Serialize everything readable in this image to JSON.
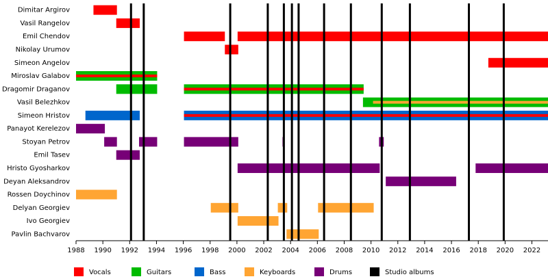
{
  "chart_data": {
    "type": "timeline",
    "categories": [
      "Dimitar Argirov",
      "Vasil Rangelov",
      "Emil Chendov",
      "Nikolay Urumov",
      "Simeon Angelov",
      "Miroslav Galabov",
      "Dragomir Draganov",
      "Vasil Belezhkov",
      "Simeon Hristov",
      "Panayot Kerelezov",
      "Stoyan Petrov",
      "Emil Tasev",
      "Hristo Gyosharkov",
      "Deyan Aleksandrov",
      "Rossen Doychinov",
      "Delyan Georgiev",
      "Ivo Georgiev",
      "Pavlin Bachvarov"
    ],
    "series": [
      {
        "name": "Vocals",
        "color": "#ff0000",
        "values": [
          [
            [
              1989.3,
              1991.05
            ]
          ],
          [
            [
              1991.0,
              1992.75
            ]
          ],
          [
            [
              1996.05,
              1999.1
            ],
            [
              2000.05,
              2023.2
            ]
          ],
          [
            [
              1999.1,
              2000.1
            ]
          ],
          [
            [
              2018.75,
              2023.2
            ]
          ],
          [
            [
              1988,
              1994.05
            ]
          ],
          [
            [
              1996.05,
              2009.45
            ]
          ],
          [],
          [
            [
              1996.05,
              2023.2
            ]
          ],
          [],
          [],
          [],
          [],
          [],
          [],
          [],
          [],
          []
        ]
      },
      {
        "name": "Guitars",
        "color": "#00bb00",
        "values": [
          [],
          [],
          [],
          [],
          [],
          [
            [
              1988,
              1994.05
            ]
          ],
          [
            [
              1991.0,
              1994.05
            ],
            [
              1996.05,
              2009.45
            ]
          ],
          [
            [
              2009.4,
              2023.2
            ]
          ],
          [],
          [],
          [],
          [],
          [],
          [],
          [],
          [],
          [],
          []
        ]
      },
      {
        "name": "Bass",
        "color": "#0066cc",
        "values": [
          [],
          [],
          [],
          [],
          [],
          [],
          [],
          [],
          [
            [
              1988.7,
              1992.75
            ],
            [
              1996.05,
              2023.2
            ]
          ],
          [],
          [],
          [],
          [],
          [],
          [],
          [],
          [],
          []
        ]
      },
      {
        "name": "Keyboards",
        "color": "#ffa533",
        "values": [
          [],
          [],
          [],
          [],
          [],
          [],
          [],
          [
            [
              2010.15,
              2023.2
            ]
          ],
          [],
          [],
          [],
          [],
          [],
          [],
          [
            [
              1988,
              1991.05
            ]
          ],
          [
            [
              1998.05,
              2000.1
            ],
            [
              2003.05,
              2003.75
            ],
            [
              2006.05,
              2010.2
            ]
          ],
          [
            [
              2000.05,
              2003.1
            ]
          ],
          [
            [
              2003.7,
              2006.1
            ]
          ]
        ]
      },
      {
        "name": "Drums",
        "color": "#770077",
        "values": [
          [],
          [],
          [],
          [],
          [],
          [],
          [],
          [],
          [],
          [
            [
              1988,
              1990.15
            ]
          ],
          [
            [
              1990.1,
              1991.05
            ],
            [
              1992.7,
              1994.05
            ],
            [
              1996.05,
              2000.1
            ],
            [
              2003.4,
              2003.55
            ],
            [
              2010.6,
              2010.95
            ]
          ],
          [
            [
              1991.0,
              1992.75
            ]
          ],
          [
            [
              2000.05,
              2010.65
            ],
            [
              2017.8,
              2023.2
            ]
          ],
          [
            [
              2011.1,
              2016.35
            ]
          ],
          [],
          [],
          [],
          []
        ]
      }
    ],
    "albums": {
      "name": "Studio albums",
      "color": "#000000",
      "values": [
        1992.1,
        1993.05,
        1999.5,
        2002.3,
        2003.5,
        2004.1,
        2004.6,
        2006.5,
        2008.5,
        2010.8,
        2012.9,
        2017.3,
        2019.9
      ]
    },
    "xlim": [
      1988,
      2023.2
    ],
    "xticks": [
      1988,
      1990,
      1992,
      1994,
      1996,
      1998,
      2000,
      2002,
      2004,
      2006,
      2008,
      2010,
      2012,
      2014,
      2016,
      2018,
      2020,
      2022
    ]
  }
}
